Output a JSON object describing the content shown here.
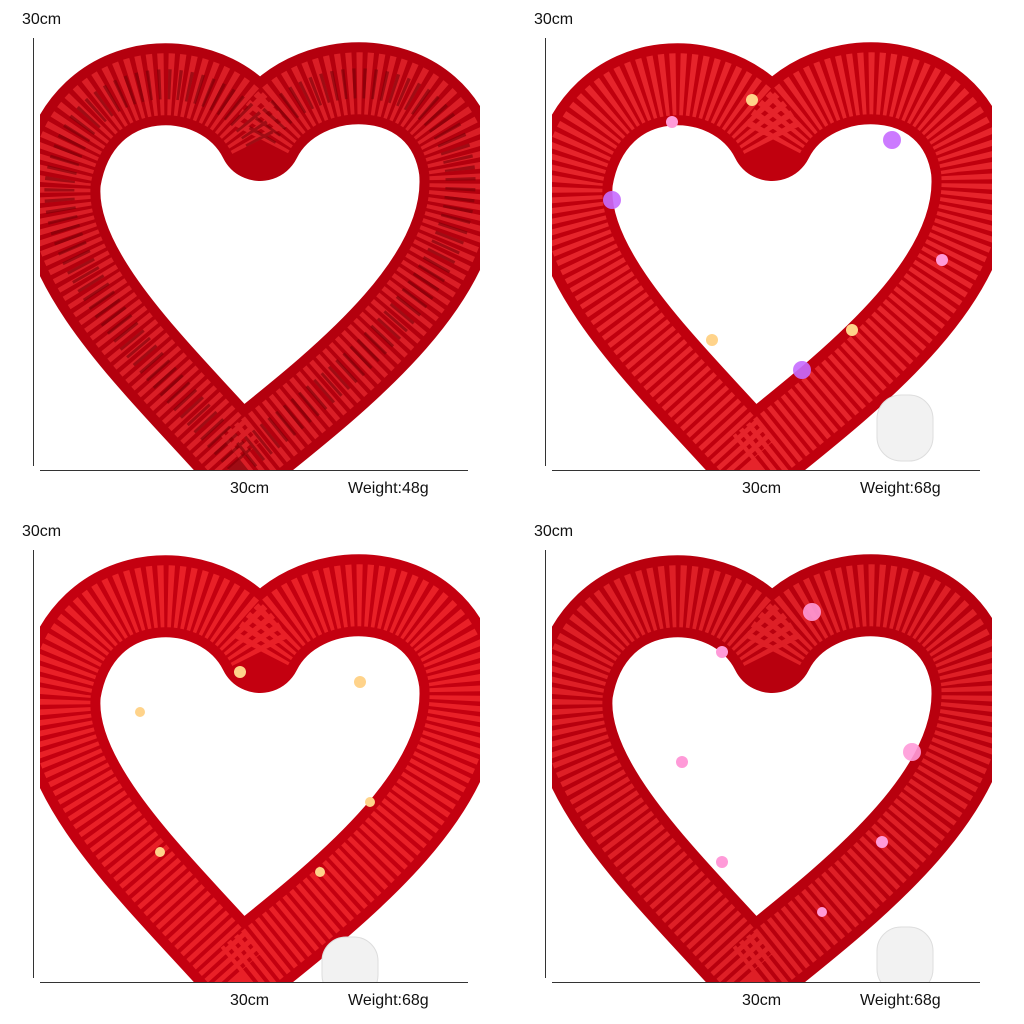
{
  "panels": [
    {
      "height_label": "30cm",
      "width_label": "30cm",
      "weight_label": "Weight:48g",
      "lights": false
    },
    {
      "height_label": "30cm",
      "width_label": "30cm",
      "weight_label": "Weight:68g",
      "lights": true,
      "light_colors": [
        "multicolor"
      ]
    },
    {
      "height_label": "30cm",
      "width_label": "30cm",
      "weight_label": "Weight:68g",
      "lights": true,
      "light_colors": [
        "warm-white"
      ]
    },
    {
      "height_label": "30cm",
      "width_label": "30cm",
      "weight_label": "Weight:68g",
      "lights": true,
      "light_colors": [
        "pink"
      ]
    }
  ],
  "colors": {
    "tinsel": "#d0101a",
    "tinsel_dark": "#8e0008",
    "light_warm": "#ffd38a",
    "light_pink": "#ff9ad8",
    "light_purple": "#c66bff",
    "battery_box": "#f2f2f2"
  }
}
